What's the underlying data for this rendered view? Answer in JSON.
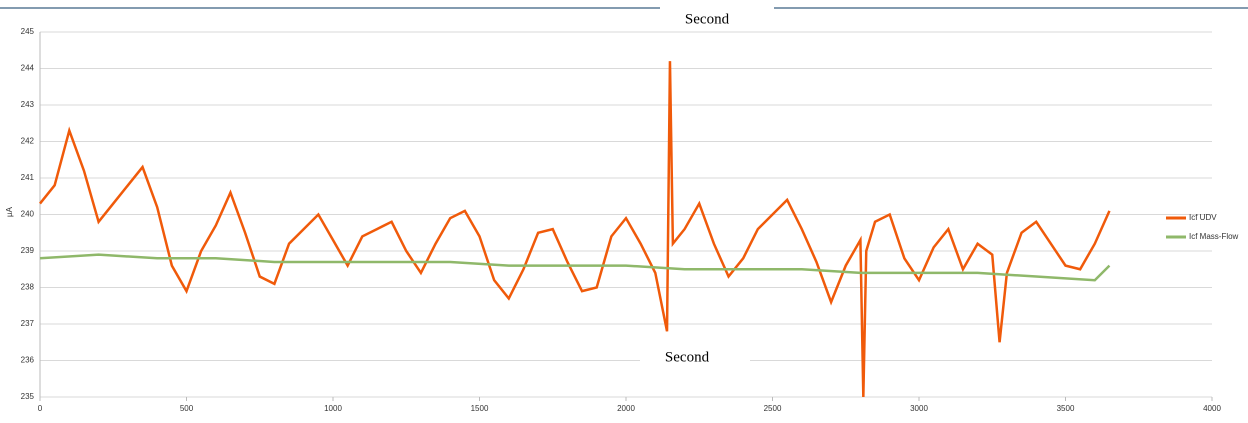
{
  "chart_data": {
    "type": "line",
    "title": "Second",
    "xlabel": "Second",
    "ylabel": "µA",
    "xlim": [
      0,
      4000
    ],
    "xticks": [
      0,
      500,
      1000,
      1500,
      2000,
      2500,
      3000,
      3500,
      4000
    ],
    "ylim": [
      235,
      245
    ],
    "yticks": [
      235,
      236,
      237,
      238,
      239,
      240,
      241,
      242,
      243,
      244,
      245
    ],
    "grid": true,
    "legend": "right",
    "series": [
      {
        "name": "Icf UDV",
        "color": "#f05a0a",
        "x": [
          0,
          50,
          100,
          150,
          200,
          250,
          300,
          350,
          400,
          450,
          500,
          550,
          600,
          650,
          700,
          750,
          800,
          850,
          900,
          950,
          1000,
          1050,
          1100,
          1150,
          1200,
          1250,
          1300,
          1350,
          1400,
          1450,
          1500,
          1550,
          1600,
          1650,
          1700,
          1750,
          1800,
          1850,
          1900,
          1950,
          2000,
          2050,
          2100,
          2140,
          2150,
          2160,
          2200,
          2250,
          2300,
          2350,
          2400,
          2450,
          2500,
          2550,
          2600,
          2650,
          2700,
          2750,
          2800,
          2810,
          2820,
          2850,
          2900,
          2950,
          3000,
          3050,
          3100,
          3150,
          3200,
          3250,
          3275,
          3300,
          3350,
          3400,
          3450,
          3500,
          3550,
          3600,
          3650
        ],
        "values": [
          240.3,
          240.8,
          242.3,
          241.2,
          239.8,
          240.3,
          240.8,
          241.3,
          240.2,
          238.6,
          237.9,
          239,
          239.7,
          240.6,
          239.5,
          238.3,
          238.1,
          239.2,
          239.6,
          240,
          239.3,
          238.6,
          239.4,
          239.6,
          239.8,
          239,
          238.4,
          239.2,
          239.9,
          240.1,
          239.4,
          238.2,
          237.7,
          238.5,
          239.5,
          239.6,
          238.7,
          237.9,
          238,
          239.4,
          239.9,
          239.2,
          238.4,
          236.8,
          244.2,
          239.2,
          239.6,
          240.3,
          239.2,
          238.3,
          238.8,
          239.6,
          240,
          240.4,
          239.6,
          238.7,
          237.6,
          238.6,
          239.3,
          235,
          239,
          239.8,
          240,
          238.8,
          238.2,
          239.1,
          239.6,
          238.5,
          239.2,
          238.9,
          236.5,
          238.4,
          239.5,
          239.8,
          239.2,
          238.6,
          238.5,
          239.2,
          240.1
        ]
      },
      {
        "name": "Icf Mass-Flow",
        "color": "#8fb86a",
        "x": [
          0,
          200,
          400,
          600,
          800,
          1000,
          1200,
          1400,
          1600,
          1800,
          2000,
          2200,
          2400,
          2600,
          2800,
          3000,
          3200,
          3400,
          3600,
          3650
        ],
        "values": [
          238.8,
          238.9,
          238.8,
          238.8,
          238.7,
          238.7,
          238.7,
          238.7,
          238.6,
          238.6,
          238.6,
          238.5,
          238.5,
          238.5,
          238.4,
          238.4,
          238.4,
          238.3,
          238.2,
          238.6
        ]
      }
    ]
  }
}
